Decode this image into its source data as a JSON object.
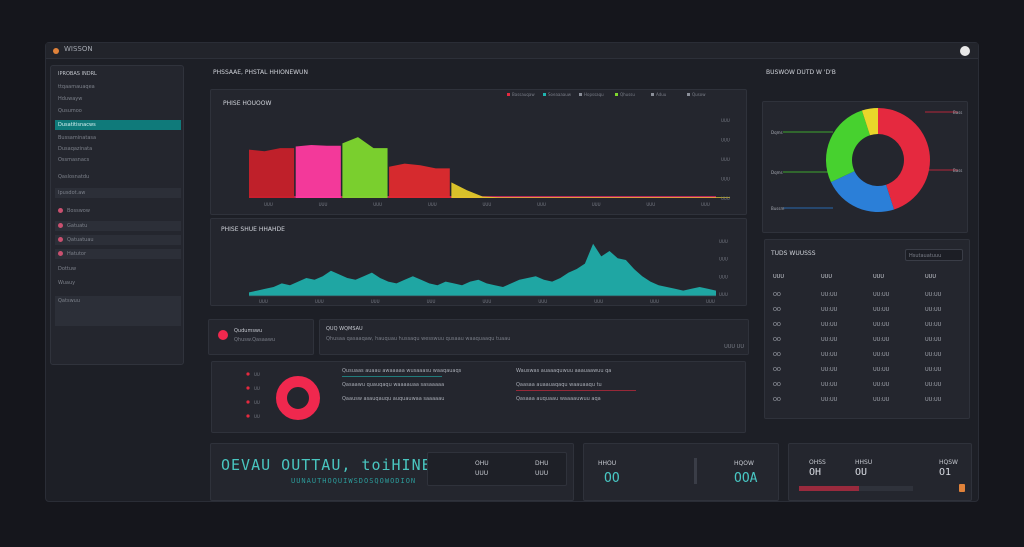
{
  "window": {
    "title": "WISSON"
  },
  "sidebar": {
    "header": "IPROBAS INDRL",
    "items": [
      {
        "label": "ttqaamauaqea"
      },
      {
        "label": "Hduwayw"
      },
      {
        "label": "Qusumoo"
      },
      {
        "label": "Dusatitisnacws"
      },
      {
        "label": "Bussaminatasa"
      },
      {
        "label": "Dusaqazinata"
      },
      {
        "label": "Ossmasnacs"
      },
      {
        "label": "Qaslosnatdu"
      },
      {
        "label": "Ipusdot.aw"
      },
      {
        "label": "Bosswow"
      },
      {
        "label": "Gatuatu"
      },
      {
        "label": "Qatuatuau"
      },
      {
        "label": "Hatutor"
      },
      {
        "label": "Dottuw"
      },
      {
        "label": "Wuauy"
      },
      {
        "label": "Qatswuu"
      }
    ]
  },
  "header": {
    "title": "PHSSAAE, PHSTAL HHIONEWUN"
  },
  "chart_top": {
    "title": "PHISE HOUOOW",
    "legend": [
      "Bassauqaw",
      "Soeaaaauw",
      "Hopssaqu",
      "Qhussu",
      "Aduu",
      "Qusow"
    ],
    "yticks": [
      "UUU",
      "UUU",
      "UUU",
      "UUU",
      "UUU"
    ],
    "xticks": [
      "UUU",
      "UUU",
      "UUU",
      "UUU",
      "UUU",
      "UUU",
      "UUU",
      "UUU",
      "UUU"
    ]
  },
  "chart_bottom": {
    "title": "PHISE SHUE HHAHDE",
    "yticks": [
      "UUU",
      "UUU",
      "UUU",
      "UUU"
    ],
    "xticks": [
      "UUU",
      "UUU",
      "UUU",
      "UUU",
      "UUU",
      "UUU",
      "UUU",
      "UUU",
      "UUU"
    ]
  },
  "donut_panel": {
    "title": "BUSWOW DUTD W 'D'B",
    "labels": [
      "Bass",
      "Bussm",
      "Dqms",
      "Qhaq"
    ]
  },
  "mid_status": {
    "label": "Qudumswu",
    "sub": "Qhusw.Qasaawu",
    "message_title": "QUQ WQMSAU",
    "message_body": "Qhusaa qasaaqaw, hauquau hussaqu wesswuu qusaau waaquaaqu tuaau",
    "right": "UUU UU"
  },
  "legend_panel": {
    "items": [
      "UU",
      "UU",
      "UU",
      "UU"
    ],
    "rows_left": [
      "Qusuaas auaau awaaaaa wusaaasu waaqauaqs",
      "Qasaawu quauqaqu waaaauaa sasaaaaa",
      "Qaausw asauqauqu auquauwaa saaaaau"
    ],
    "rows_right": [
      "Wauswas auaaaquwuu aaauaawuu qa",
      "Qaasaa auaauaqaqu waauaaqu tu",
      "Qasaaa auquaau waaaauwuu aqa"
    ]
  },
  "table": {
    "title": "TUDS WUUSSS",
    "search": "Hsutauatuuu",
    "headers": [
      "UUU",
      "UUU",
      "UUU",
      "UUU"
    ],
    "rows": [
      [
        "OO",
        "UU:UU",
        "UU:UU",
        "UU:UU"
      ],
      [
        "OO",
        "UU:UU",
        "UU:UU",
        "UU:UU"
      ],
      [
        "OO",
        "UU:UU",
        "UU:UU",
        "UU:UU"
      ],
      [
        "OO",
        "UU:UU",
        "UU:UU",
        "UU:UU"
      ],
      [
        "OO",
        "UU:UU",
        "UU:UU",
        "UU:UU"
      ],
      [
        "OO",
        "UU:UU",
        "UU:UU",
        "UU:UU"
      ],
      [
        "OO",
        "UU:UU",
        "UU:UU",
        "UU:UU"
      ],
      [
        "OO",
        "UU:UU",
        "UU:UU",
        "UU:UU"
      ]
    ]
  },
  "footer": {
    "big": "OEVAU OUTTAU, toiHINE OOmwos",
    "sub": "UUNAUTHOQUIWSDOSQOWODION",
    "mini1": [
      "OHU",
      "UUU"
    ],
    "mini2": [
      "DHU",
      "UUU"
    ],
    "stat1_label": "HHOU",
    "stat1_value": "OO",
    "stat2_label": "HQOW",
    "stat2_value": "OOA",
    "stat3_a": "OH",
    "stat3_b": "OU",
    "stat3_c": "O1",
    "stat3_labels": [
      "OHSS",
      "HHSU",
      "HQSW"
    ]
  },
  "colors": {
    "accent": "#1fb5b0",
    "red": "#e52d4b",
    "panel": "#24262e",
    "bg": "#15161c"
  },
  "chart_data": [
    {
      "type": "area",
      "title": "PHISE HOUOOW",
      "x": [
        0,
        1,
        2,
        3,
        4,
        5,
        6,
        7,
        8,
        9,
        10,
        11,
        12,
        13,
        14,
        15,
        16,
        17,
        18,
        19,
        20,
        21,
        22,
        23,
        24,
        25,
        26,
        27,
        28,
        29,
        30
      ],
      "series": [
        {
          "name": "Bassauqaw",
          "color": "#c8202a",
          "values": [
            62,
            60,
            64,
            0,
            0,
            0,
            0,
            0,
            0,
            0,
            0,
            0,
            0,
            0,
            0,
            0,
            0,
            0,
            0,
            0,
            0,
            0,
            0,
            0,
            0,
            0,
            0,
            0,
            0,
            0,
            0
          ]
        },
        {
          "name": "Soeaaaauw",
          "color": "#ff3aa0",
          "values": [
            0,
            0,
            0,
            66,
            68,
            67,
            0,
            0,
            0,
            0,
            0,
            0,
            0,
            0,
            0,
            0,
            0,
            0,
            0,
            0,
            0,
            0,
            0,
            0,
            0,
            0,
            0,
            0,
            0,
            0,
            0
          ]
        },
        {
          "name": "Hopssaqu",
          "color": "#7fd82e",
          "values": [
            0,
            0,
            0,
            0,
            0,
            0,
            70,
            78,
            64,
            0,
            0,
            0,
            0,
            0,
            0,
            0,
            0,
            0,
            0,
            0,
            0,
            0,
            0,
            0,
            0,
            0,
            0,
            0,
            0,
            0,
            0
          ]
        },
        {
          "name": "Qhussu",
          "color": "#e02a2e",
          "values": [
            0,
            0,
            0,
            0,
            0,
            0,
            0,
            0,
            0,
            40,
            44,
            42,
            38,
            0,
            0,
            0,
            0,
            0,
            0,
            0,
            0,
            0,
            0,
            0,
            0,
            0,
            0,
            0,
            0,
            0,
            0
          ]
        },
        {
          "name": "Aduu",
          "color": "#e4c92a",
          "values": [
            0,
            0,
            0,
            0,
            0,
            0,
            0,
            0,
            0,
            0,
            0,
            0,
            0,
            20,
            10,
            2,
            1,
            1,
            1,
            1,
            1,
            1,
            1,
            1,
            1,
            1,
            1,
            1,
            1,
            1,
            1
          ]
        }
      ],
      "ylim": [
        0,
        100
      ]
    },
    {
      "type": "area",
      "title": "PHISE SHUE HHAHDE",
      "series": [
        {
          "name": "",
          "color": "#1fb5b0",
          "values": [
            4,
            6,
            8,
            10,
            14,
            12,
            16,
            20,
            18,
            22,
            28,
            24,
            20,
            18,
            22,
            26,
            20,
            16,
            14,
            18,
            22,
            18,
            14,
            12,
            16,
            14,
            12,
            16,
            18,
            14,
            12,
            10,
            14,
            18,
            20,
            22,
            18,
            16,
            20,
            26,
            30,
            36,
            58,
            44,
            50,
            42,
            40,
            30,
            22,
            16,
            12,
            10,
            8,
            6,
            8,
            10,
            8,
            6
          ]
        }
      ],
      "ylim": [
        0,
        70
      ]
    },
    {
      "type": "pie",
      "title": "BUSWOW DUTD W 'D'B",
      "labels": [
        "Bass",
        "Bussm",
        "Dqms",
        "Qhaq"
      ],
      "values": [
        45,
        23,
        27,
        5
      ],
      "colors": [
        "#e5293f",
        "#2b7fd8",
        "#47d12f",
        "#e9d62a"
      ]
    },
    {
      "type": "pie",
      "title": "",
      "labels": [
        "UU"
      ],
      "values": [
        100
      ],
      "colors": [
        "#f0284e"
      ]
    }
  ]
}
